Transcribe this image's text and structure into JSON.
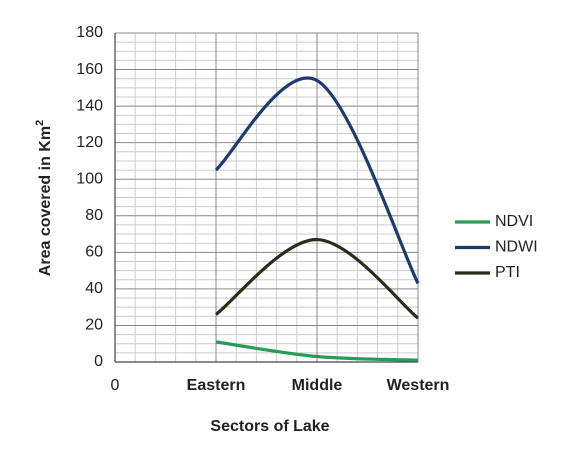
{
  "chart_data": {
    "type": "line",
    "x_label": "Sectors of Lake",
    "y_label": "Area covered in Km",
    "y_label_superscript": "2",
    "categories": [
      "0",
      "Eastern",
      "Middle",
      "Western"
    ],
    "series": [
      {
        "name": "NDVI",
        "color": "#2a9a5a",
        "values": [
          null,
          11,
          3,
          1
        ]
      },
      {
        "name": "NDWI",
        "color": "#1f3b6b",
        "values": [
          null,
          105,
          154,
          43
        ]
      },
      {
        "name": "PTI",
        "color": "#2c2c1c",
        "values": [
          null,
          26,
          67,
          24
        ]
      }
    ],
    "ylim": [
      0,
      180
    ],
    "yticks": [
      0,
      20,
      40,
      60,
      80,
      100,
      120,
      140,
      160,
      180
    ],
    "grid": true,
    "minor_grid": true,
    "smooth": true,
    "legend": "right"
  }
}
